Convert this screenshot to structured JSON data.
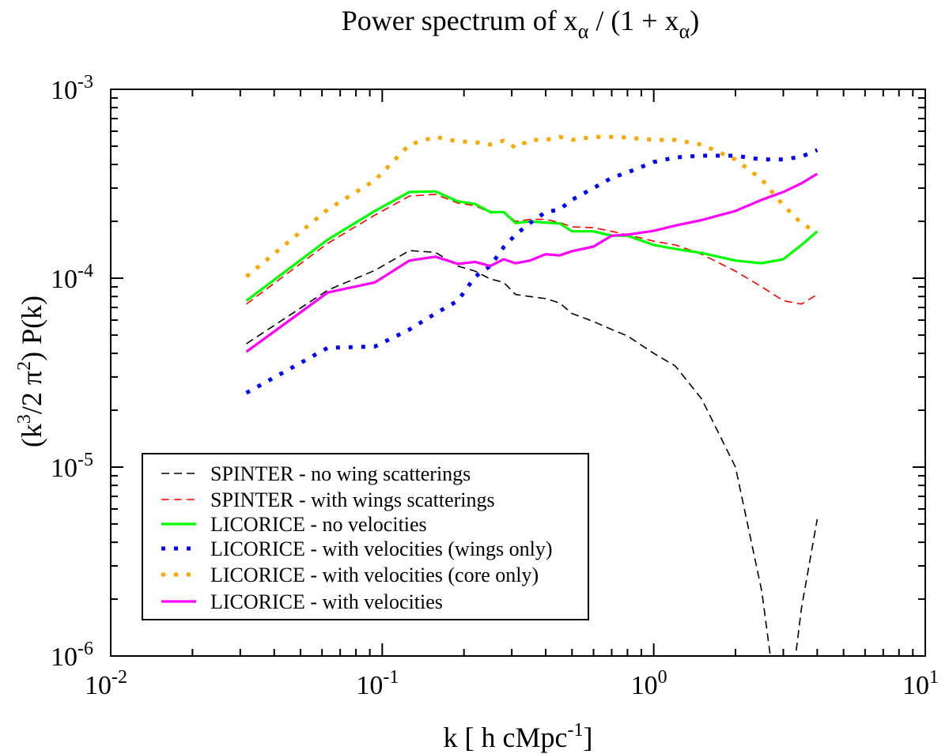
{
  "chart_data": {
    "type": "line",
    "title": {
      "prefix": "Power spectrum of  x",
      "sub1": "α",
      "mid": " / (1 + x",
      "sub2": "α",
      "suffix": ")"
    },
    "xlabel": {
      "main": "k  [ h cMpc",
      "sup": "-1",
      "end": "]"
    },
    "ylabel": {
      "p1": "(k",
      "sup1": "3",
      "p2": "/2 π",
      "sup2": "2",
      "p3": ")  P(k)"
    },
    "xscale": "log",
    "yscale": "log",
    "xlim": [
      0.01,
      10
    ],
    "ylim": [
      1e-06,
      0.001
    ],
    "grid": false,
    "legend_position": "bottom-left",
    "x_ticks": [
      {
        "base": "10",
        "exp": "-2"
      },
      {
        "base": "10",
        "exp": "-1"
      },
      {
        "base": "10",
        "exp": "0"
      },
      {
        "base": "10",
        "exp": "1"
      }
    ],
    "y_ticks": [
      {
        "base": "10",
        "exp": "-6"
      },
      {
        "base": "10",
        "exp": "-5"
      },
      {
        "base": "10",
        "exp": "-4"
      },
      {
        "base": "10",
        "exp": "-3"
      }
    ],
    "x": [
      0.0316,
      0.063,
      0.094,
      0.126,
      0.157,
      0.19,
      0.22,
      0.25,
      0.28,
      0.31,
      0.35,
      0.4,
      0.45,
      0.5,
      0.6,
      0.7,
      0.8,
      1.0,
      1.2,
      1.5,
      2.0,
      2.5,
      3.0,
      3.5,
      4.0
    ],
    "series": [
      {
        "name": "SPINTER - no wing scatterings",
        "color": "#000000",
        "style": "dashed",
        "values": [
          4.5e-05,
          8.65e-05,
          0.00011,
          0.00014,
          0.000137,
          0.000116,
          0.000109,
          9.9e-05,
          9.5e-05,
          8.2e-05,
          8e-05,
          7.8e-05,
          7.4e-05,
          6.5e-05,
          5.9e-05,
          5.35e-05,
          4.95e-05,
          4e-05,
          3.43e-05,
          2.3e-05,
          1e-05,
          2.2e-06,
          3e-07,
          1.8e-06,
          5.3e-06
        ]
      },
      {
        "name": "SPINTER - with wings scatterings",
        "color": "#ff0000",
        "style": "dashed",
        "values": [
          7.3e-05,
          0.000153,
          0.000216,
          0.000272,
          0.000278,
          0.00025,
          0.000242,
          0.000222,
          0.000224,
          0.0002,
          0.000205,
          0.000205,
          0.000197,
          0.000187,
          0.000185,
          0.000177,
          0.00017,
          0.000157,
          0.00015,
          0.000134,
          0.000109,
          9e-05,
          7.6e-05,
          7.3e-05,
          8.2e-05
        ]
      },
      {
        "name": "LICORICE - no velocities",
        "color": "#00ff00",
        "style": "solid",
        "values": [
          7.6e-05,
          0.00016,
          0.000227,
          0.000286,
          0.000288,
          0.000255,
          0.000247,
          0.000224,
          0.000224,
          0.000196,
          0.0002,
          0.000197,
          0.000195,
          0.000177,
          0.000177,
          0.000168,
          0.000168,
          0.00015,
          0.000143,
          0.000136,
          0.000124,
          0.00012,
          0.000126,
          0.00015,
          0.000177
        ]
      },
      {
        "name": "LICORICE - with velocities (wings only)",
        "color": "#0000ff",
        "style": "dotted",
        "values": [
          2.47e-05,
          4.28e-05,
          4.35e-05,
          5.35e-05,
          6.5e-05,
          7.6e-05,
          0.000102,
          0.000116,
          0.000146,
          0.00017,
          0.000196,
          0.000224,
          0.000231,
          0.00026,
          0.0003,
          0.00034,
          0.000363,
          0.000412,
          0.000436,
          0.000445,
          0.000445,
          0.000425,
          0.000425,
          0.00044,
          0.000477
        ]
      },
      {
        "name": "LICORICE - with velocities (core only)",
        "color": "#ffa500",
        "style": "dotted",
        "values": [
          0.000102,
          0.000231,
          0.00033,
          0.00051,
          0.00056,
          0.00053,
          0.000525,
          0.00051,
          0.000535,
          0.00049,
          0.00054,
          0.00054,
          0.00056,
          0.00054,
          0.00056,
          0.00056,
          0.000555,
          0.00054,
          0.00054,
          0.00051,
          0.000425,
          0.000333,
          0.000243,
          0.000195,
          0.000175
        ]
      },
      {
        "name": "LICORICE - with velocities",
        "color": "#ff00ff",
        "style": "solid",
        "values": [
          4.08e-05,
          8.4e-05,
          9.5e-05,
          0.000124,
          0.00013,
          0.000119,
          0.000122,
          0.000116,
          0.000126,
          0.00012,
          0.000124,
          0.000134,
          0.000132,
          0.000139,
          0.000147,
          0.000168,
          0.00017,
          0.000178,
          0.00019,
          0.000203,
          0.000227,
          0.00026,
          0.000286,
          0.000318,
          0.000357
        ]
      }
    ]
  }
}
